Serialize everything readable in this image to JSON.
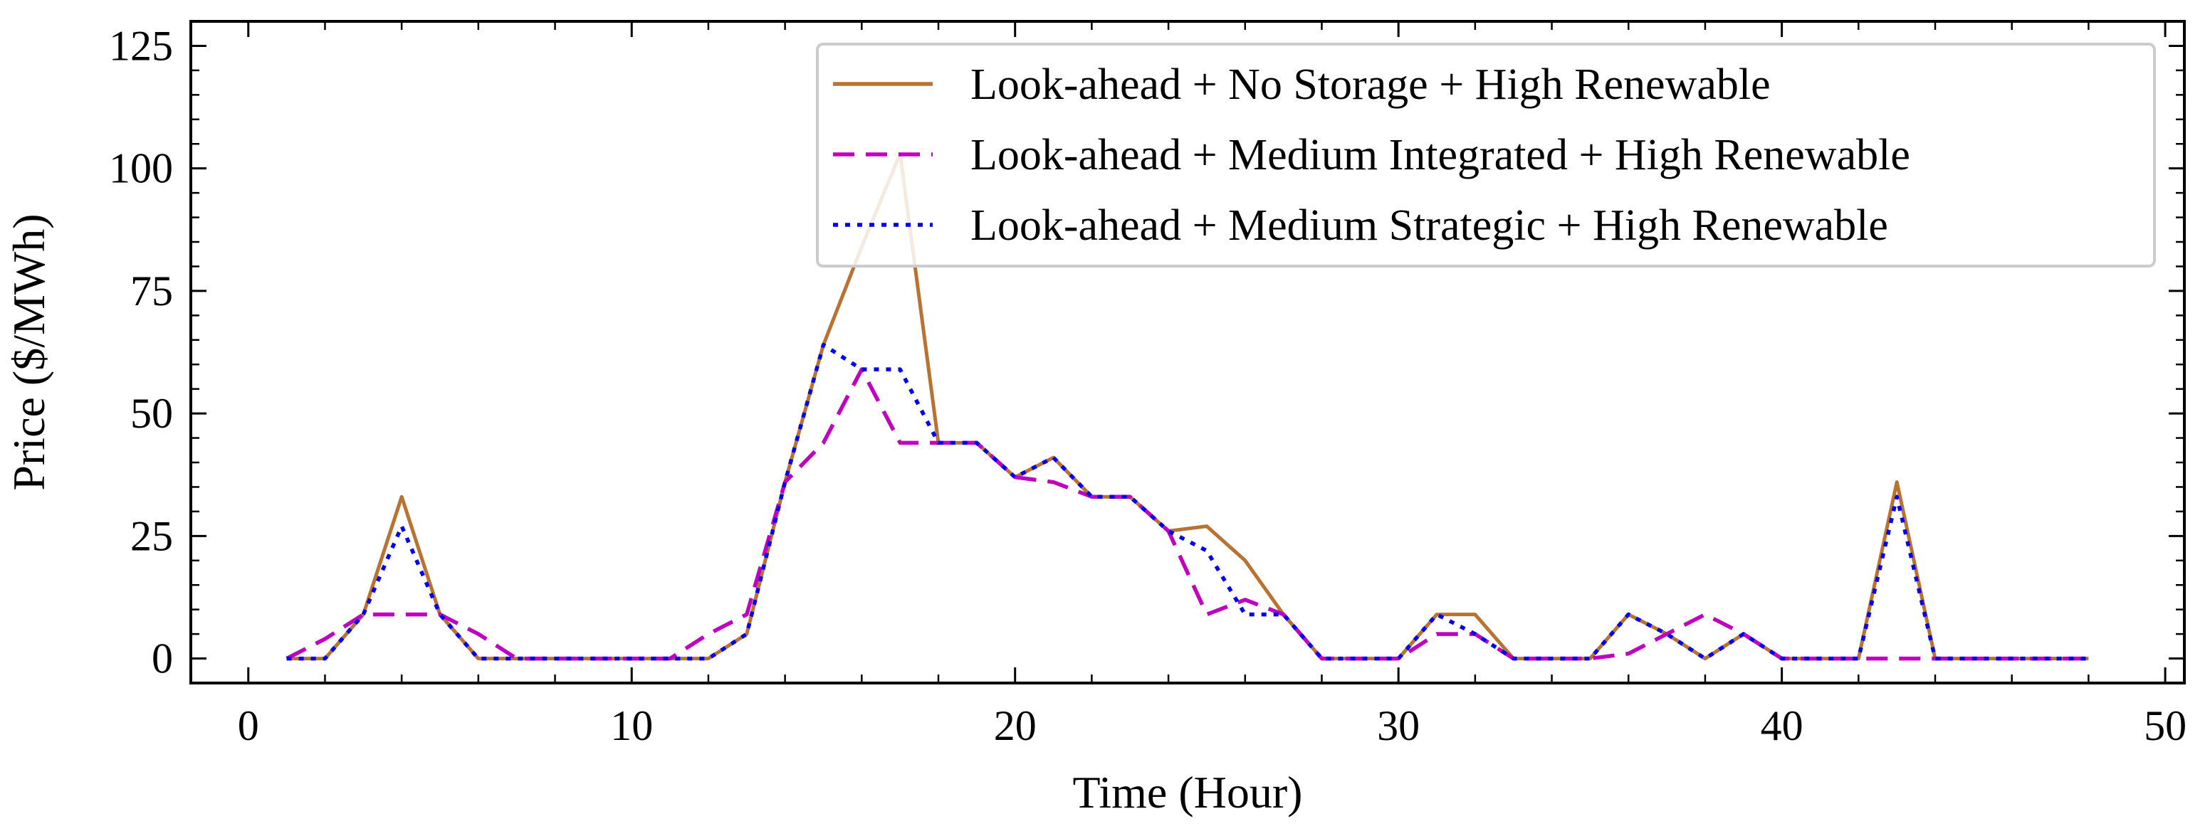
{
  "chart_data": {
    "type": "line",
    "title": "",
    "xlabel": "Time (Hour)",
    "ylabel": "Price ($/MWh)",
    "xlim": [
      -1.5,
      50.5
    ],
    "ylim": [
      -5,
      130
    ],
    "xticks": [
      0,
      10,
      20,
      30,
      40,
      50
    ],
    "yticks": [
      0,
      25,
      50,
      75,
      100,
      125
    ],
    "grid": false,
    "legend_position": "top-right",
    "x": [
      1,
      2,
      3,
      4,
      5,
      6,
      7,
      8,
      9,
      10,
      11,
      12,
      13,
      14,
      15,
      16,
      17,
      18,
      19,
      20,
      21,
      22,
      23,
      24,
      25,
      26,
      27,
      28,
      29,
      30,
      31,
      32,
      33,
      34,
      35,
      36,
      37,
      38,
      39,
      40,
      41,
      42,
      43,
      44,
      45,
      46,
      47,
      48
    ],
    "series": [
      {
        "name": "Look-ahead + No Storage + High Renewable",
        "color": "#b87333",
        "style": "solid",
        "values": [
          0,
          0,
          9,
          33,
          9,
          0,
          0,
          0,
          0,
          0,
          0,
          0,
          5,
          36,
          64,
          84,
          103,
          44,
          44,
          37,
          41,
          33,
          33,
          26,
          27,
          20,
          9,
          0,
          0,
          0,
          9,
          9,
          0,
          0,
          0,
          9,
          5,
          0,
          5,
          0,
          0,
          0,
          36,
          0,
          0,
          0,
          0,
          0
        ]
      },
      {
        "name": "Look-ahead + Medium Integrated + High Renewable",
        "color": "#bf00bf",
        "style": "dashed",
        "values": [
          0,
          4,
          9,
          9,
          9,
          5,
          0,
          0,
          0,
          0,
          0,
          5,
          9,
          36,
          44,
          59,
          44,
          44,
          44,
          37,
          36,
          33,
          33,
          26,
          9,
          12,
          9,
          0,
          0,
          0,
          5,
          5,
          0,
          0,
          0,
          1,
          5,
          9,
          5,
          0,
          0,
          0,
          0,
          0,
          0,
          0,
          0,
          0
        ]
      },
      {
        "name": "Look-ahead + Medium Strategic + High Renewable",
        "color": "#0000ee",
        "style": "dotted",
        "values": [
          0,
          0,
          9,
          27,
          9,
          0,
          0,
          0,
          0,
          0,
          0,
          0,
          5,
          36,
          64,
          59,
          59,
          44,
          44,
          37,
          41,
          33,
          33,
          26,
          22,
          9,
          9,
          0,
          0,
          0,
          9,
          5,
          0,
          0,
          0,
          9,
          5,
          0,
          5,
          0,
          0,
          0,
          33,
          0,
          0,
          0,
          0,
          0
        ]
      }
    ]
  }
}
